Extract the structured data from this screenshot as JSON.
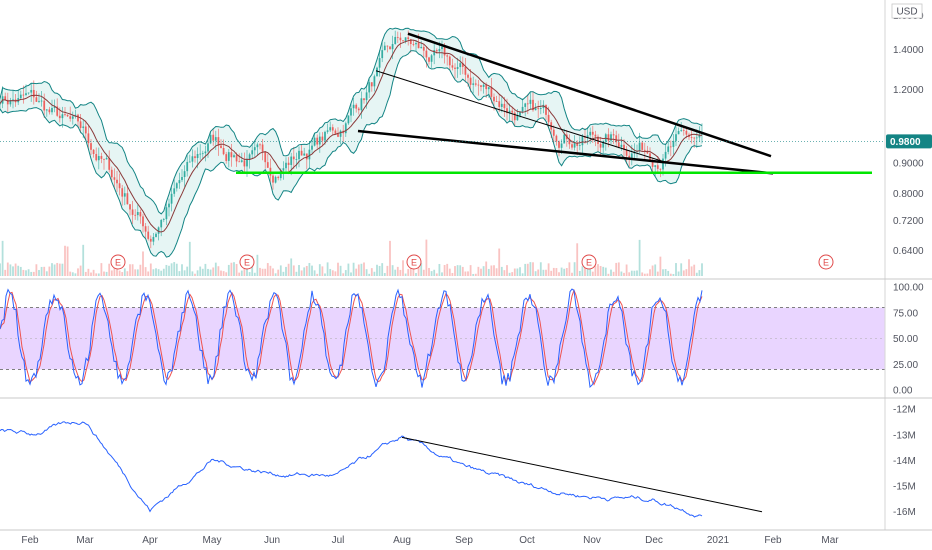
{
  "chart_data": [
    {
      "type": "candlestick",
      "panel": "price",
      "currency": "USD",
      "last_price": "0.9800",
      "y_ticks": [
        "1.6000",
        "1.4000",
        "1.2000",
        "1.0000",
        "0.9000",
        "0.8000",
        "0.7200",
        "0.6400"
      ],
      "y_scale": "log",
      "ylim": [
        0.58,
        1.66
      ],
      "earnings_marker": "E",
      "earnings_months": [
        "Mar",
        "May",
        "Aug",
        "Nov",
        "Mar"
      ],
      "close_path": [
        [
          "Jan",
          1.19
        ],
        [
          "Feb",
          1.15
        ],
        [
          "Mar",
          0.98
        ],
        [
          "Apr",
          0.68
        ],
        [
          "May",
          0.98
        ],
        [
          "Jun",
          0.88
        ],
        [
          "Jul",
          1.02
        ],
        [
          "Aug",
          1.43
        ],
        [
          "Sep",
          1.25
        ],
        [
          "Oct",
          1.08
        ],
        [
          "Nov",
          1.0
        ],
        [
          "Dec",
          0.96
        ],
        [
          "Dec-end",
          0.98
        ]
      ],
      "trendlines": [
        {
          "name": "upper wedge",
          "from": [
            "Aug",
            1.49
          ],
          "to": [
            "Feb",
            0.925
          ]
        },
        {
          "name": "lower wedge",
          "from": [
            "Jul",
            1.02
          ],
          "to": [
            "Feb",
            0.865
          ]
        },
        {
          "name": "support",
          "from": [
            "May",
            0.867
          ],
          "to": [
            "Mar-end",
            0.867
          ]
        }
      ]
    },
    {
      "type": "line",
      "panel": "oscillator",
      "y_ticks": [
        "100.00",
        "75.00",
        "50.00",
        "25.00",
        "0.00"
      ],
      "ylim": [
        0,
        100
      ],
      "band": [
        20,
        80
      ]
    },
    {
      "type": "line",
      "panel": "volume-accumulation",
      "y_ticks": [
        "-12M",
        "-13M",
        "-14M",
        "-15M",
        "-16M"
      ],
      "ylim": [
        -16.4,
        -11.8
      ],
      "path": [
        [
          "Jan",
          -12.7
        ],
        [
          "Feb",
          -13.0
        ],
        [
          "Mar",
          -12.4
        ],
        [
          "Apr",
          -15.9
        ],
        [
          "May",
          -14.0
        ],
        [
          "Jun",
          -14.5
        ],
        [
          "Jul",
          -14.6
        ],
        [
          "Aug",
          -13.1
        ],
        [
          "Sep",
          -14.3
        ],
        [
          "Oct",
          -15.0
        ],
        [
          "Nov",
          -15.4
        ],
        [
          "Dec",
          -15.5
        ],
        [
          "Dec-end",
          -16.1
        ]
      ],
      "trendline": {
        "from": [
          "Aug",
          -13.1
        ],
        "to": [
          "Feb",
          -16.0
        ]
      }
    }
  ],
  "x_axis": {
    "ticks": [
      "Feb",
      "Mar",
      "Apr",
      "May",
      "Jun",
      "Jul",
      "Aug",
      "Sep",
      "Oct",
      "Nov",
      "Dec",
      "2021",
      "Feb",
      "Mar"
    ]
  },
  "colors": {
    "up": "#26a69a",
    "down": "#ef5350",
    "bollinger": "#138484",
    "bollinger_fill": "#e0f3f1",
    "ma": "#8b3a3a",
    "support": "#00e600",
    "oscillator_band": "#e9d5ff",
    "stoch_k": "#2962ff",
    "stoch_d": "#ef5350",
    "accumulation": "#2962ff",
    "price_badge": "#138484"
  }
}
